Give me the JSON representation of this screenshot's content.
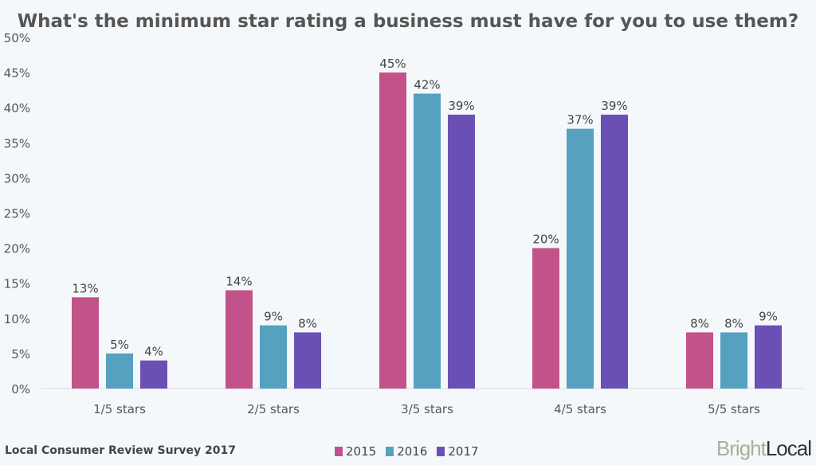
{
  "chart_data": {
    "type": "bar",
    "title": "What's the minimum star rating a business must have for you to use them?",
    "categories": [
      "1/5 stars",
      "2/5 stars",
      "3/5 stars",
      "4/5 stars",
      "5/5 stars"
    ],
    "series": [
      {
        "name": "2015",
        "color": "#c2538a",
        "values": [
          13,
          14,
          45,
          20,
          8
        ]
      },
      {
        "name": "2016",
        "color": "#55a1bf",
        "values": [
          5,
          9,
          42,
          37,
          8
        ]
      },
      {
        "name": "2017",
        "color": "#6a50b5",
        "values": [
          4,
          8,
          39,
          39,
          9
        ]
      }
    ],
    "ylim": [
      0,
      50
    ],
    "yticks": [
      "0%",
      "5%",
      "10%",
      "15%",
      "20%",
      "25%",
      "30%",
      "35%",
      "40%",
      "45%",
      "50%"
    ],
    "grid": false,
    "legend": "bottom-center"
  },
  "footer": {
    "source": "Local Consumer Review Survey 2017",
    "logo_bright": "Bright",
    "logo_local": "Local"
  }
}
